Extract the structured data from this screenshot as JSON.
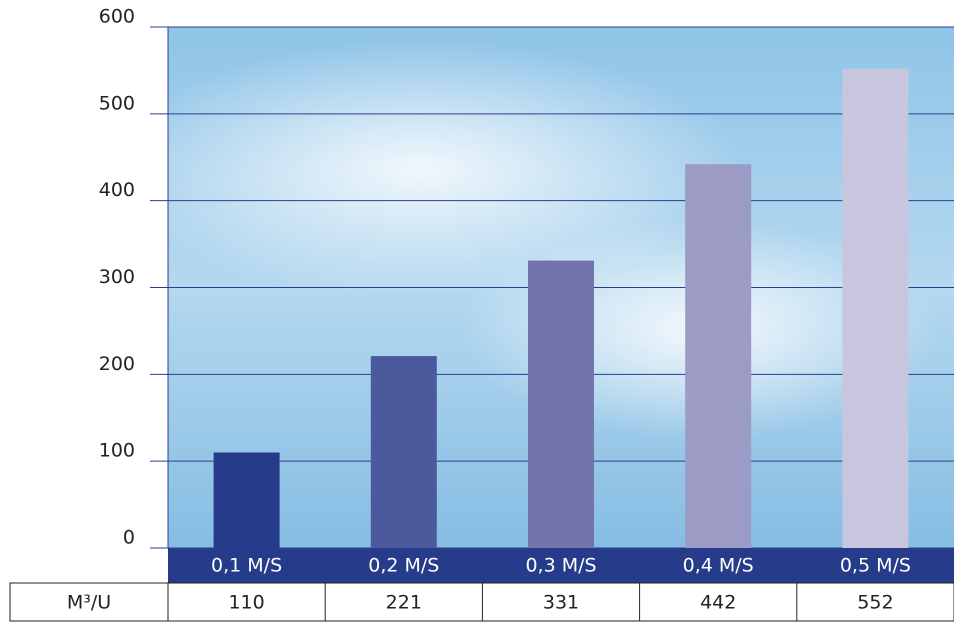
{
  "chart_data": {
    "type": "bar",
    "categories": [
      "0,1 M/S",
      "0,2 M/S",
      "0,3 M/S",
      "0,4 M/S",
      "0,5 M/S"
    ],
    "values": [
      110,
      221,
      331,
      442,
      552
    ],
    "row_label": "M³/U",
    "colors": [
      "#263c8a",
      "#4b5a9d",
      "#7474ad",
      "#9c9bc6",
      "#c8c6de"
    ],
    "ylim": [
      0,
      600
    ],
    "yticks": [
      0,
      100,
      200,
      300,
      400,
      500,
      600
    ],
    "grid": true
  }
}
